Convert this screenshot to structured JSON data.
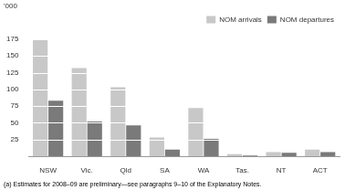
{
  "chart_data": {
    "type": "bar",
    "categories": [
      "NSW",
      "Vic.",
      "Qld",
      "SA",
      "WA",
      "Tas.",
      "NT",
      "ACT"
    ],
    "series": [
      {
        "name": "NOM arrivals",
        "color": "#c8c8c8",
        "values": [
          175,
          132,
          103,
          28,
          72,
          3,
          6,
          10
        ]
      },
      {
        "name": "NOM departures",
        "color": "#7a7a7a",
        "values": [
          83,
          52,
          46,
          10,
          26,
          1,
          5,
          6
        ]
      }
    ],
    "ylabel": "'000",
    "footnote": "(a) Estimates for 2008–09 are preliminary—see paragraphs 9–10 of the Explanatory Notes.",
    "ylim": [
      0,
      185
    ],
    "yticks": [
      {
        "value": 0,
        "label": ""
      },
      25,
      50,
      75,
      100,
      125,
      150,
      175
    ],
    "grid": true,
    "legend": "upper right"
  }
}
